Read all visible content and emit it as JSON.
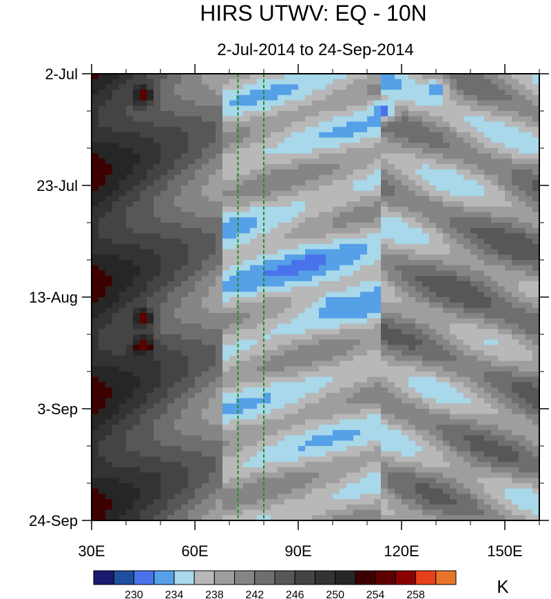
{
  "chart_data": {
    "type": "heatmap",
    "title": "HIRS UTWV: EQ - 10N",
    "subtitle": "2-Jul-2014 to 24-Sep-2014",
    "x_axis": {
      "range": [
        30,
        160
      ],
      "ticks": [
        30,
        60,
        90,
        120,
        150
      ],
      "tick_labels": [
        "30E",
        "60E",
        "90E",
        "120E",
        "150E"
      ]
    },
    "y_axis": {
      "range_days": [
        0,
        84
      ],
      "ticks_days": [
        0,
        21,
        42,
        63,
        84
      ],
      "tick_labels": [
        "2-Jul",
        "23-Jul",
        "13-Aug",
        "3-Sep",
        "24-Sep"
      ]
    },
    "reference_lines_lon": [
      72.5,
      80
    ],
    "reference_line_color": "#228b22",
    "colorbar": {
      "unit": "K",
      "levels": [
        226,
        228,
        230,
        232,
        234,
        236,
        238,
        240,
        242,
        244,
        246,
        248,
        250,
        252,
        254,
        256,
        258,
        260
      ],
      "labeled_levels": [
        "230",
        "234",
        "238",
        "242",
        "246",
        "250",
        "254",
        "258"
      ],
      "colors": [
        "#1a1a6e",
        "#1f4f9c",
        "#4a72ea",
        "#55a0e6",
        "#a8d8ea",
        "#b8b8b8",
        "#9e9e9e",
        "#858585",
        "#6e6e6e",
        "#575757",
        "#444444",
        "#333333",
        "#262626",
        "#3d0000",
        "#5c0000",
        "#8b0000",
        "#e8401a",
        "#e8742a"
      ]
    },
    "patterns": [
      {
        "note": "warm dry zone west",
        "lon": 45,
        "day": 4,
        "value": 255
      },
      {
        "note": "warm dry zone west",
        "lon": 45,
        "day": 46,
        "value": 255
      },
      {
        "note": "warm dry zone west",
        "lon": 45,
        "day": 51,
        "value": 256
      },
      {
        "note": "moist band",
        "lon": 130,
        "day": 3,
        "value": 232
      },
      {
        "note": "moist band",
        "lon": 115,
        "day": 7,
        "value": 231
      },
      {
        "note": "moist band",
        "lon": 95,
        "day": 35,
        "value": 231
      },
      {
        "note": "moist band",
        "lon": 100,
        "day": 44,
        "value": 232
      }
    ]
  }
}
